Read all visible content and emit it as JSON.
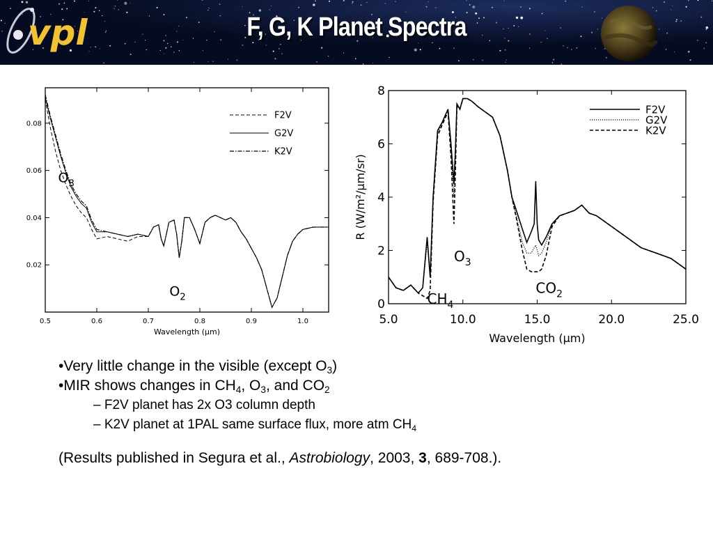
{
  "header": {
    "title": "F, G, K  Planet Spectra",
    "logo_text": "vpl",
    "logo_icon": "atom-orbit-icon",
    "decoration": "planet-icon",
    "colors": {
      "banner_bg": "#07102a",
      "logo": "#f2c230",
      "title": "#ffffff"
    }
  },
  "chart_data": [
    {
      "type": "line",
      "xlabel": "Wavelength (μm)",
      "xlim": [
        0.5,
        1.05
      ],
      "ylim": [
        0.0,
        0.095
      ],
      "xticks": [
        "0.5",
        "0.6",
        "0.7",
        "0.8",
        "0.9",
        "1.0"
      ],
      "yticks": [
        "0.02",
        "0.04",
        "0.06",
        "0.08"
      ],
      "legend": [
        "F2V",
        "G2V",
        "K2V"
      ],
      "legend_placement": "top-right",
      "annotations": [
        {
          "label": "O",
          "sub": "3",
          "x": 0.525,
          "y": 0.055
        },
        {
          "label": "O",
          "sub": "2",
          "x": 0.741,
          "y": 0.007
        }
      ],
      "series": [
        {
          "name": "F2V",
          "style": "dashed",
          "x": [
            0.5,
            0.51,
            0.52,
            0.53,
            0.54,
            0.55,
            0.56,
            0.57,
            0.58,
            0.59,
            0.6,
            0.62,
            0.64,
            0.66,
            0.68,
            0.7,
            0.71,
            0.72,
            0.725,
            0.73,
            0.74,
            0.75,
            0.755,
            0.76,
            0.765,
            0.77,
            0.78,
            0.79,
            0.8,
            0.81,
            0.82,
            0.83,
            0.84,
            0.85,
            0.86,
            0.87,
            0.88,
            0.89,
            0.9,
            0.91,
            0.92,
            0.93,
            0.94,
            0.95,
            0.96,
            0.97,
            0.98,
            0.99,
            1.0,
            1.02,
            1.05
          ],
          "y": [
            0.09,
            0.078,
            0.068,
            0.06,
            0.054,
            0.049,
            0.045,
            0.042,
            0.04,
            0.035,
            0.031,
            0.032,
            0.031,
            0.03,
            0.032,
            0.032,
            0.036,
            0.037,
            0.031,
            0.028,
            0.038,
            0.039,
            0.033,
            0.023,
            0.03,
            0.04,
            0.04,
            0.035,
            0.029,
            0.038,
            0.04,
            0.041,
            0.04,
            0.039,
            0.04,
            0.038,
            0.034,
            0.031,
            0.027,
            0.023,
            0.018,
            0.01,
            0.002,
            0.006,
            0.015,
            0.024,
            0.03,
            0.033,
            0.035,
            0.036,
            0.036
          ]
        },
        {
          "name": "G2V",
          "style": "solid",
          "x": [
            0.5,
            0.51,
            0.52,
            0.53,
            0.54,
            0.55,
            0.56,
            0.57,
            0.58,
            0.59,
            0.6,
            0.62,
            0.64,
            0.66,
            0.68,
            0.7,
            0.71,
            0.72,
            0.725,
            0.73,
            0.74,
            0.75,
            0.755,
            0.76,
            0.765,
            0.77,
            0.78,
            0.79,
            0.8,
            0.81,
            0.82,
            0.83,
            0.84,
            0.85,
            0.86,
            0.87,
            0.88,
            0.89,
            0.9,
            0.91,
            0.92,
            0.93,
            0.94,
            0.95,
            0.96,
            0.97,
            0.98,
            0.99,
            1.0,
            1.02,
            1.05
          ],
          "y": [
            0.091,
            0.082,
            0.074,
            0.066,
            0.059,
            0.053,
            0.049,
            0.046,
            0.044,
            0.038,
            0.034,
            0.034,
            0.033,
            0.032,
            0.033,
            0.032,
            0.036,
            0.037,
            0.031,
            0.028,
            0.038,
            0.039,
            0.033,
            0.023,
            0.03,
            0.04,
            0.04,
            0.035,
            0.029,
            0.038,
            0.04,
            0.041,
            0.04,
            0.039,
            0.04,
            0.038,
            0.034,
            0.031,
            0.027,
            0.023,
            0.018,
            0.01,
            0.002,
            0.006,
            0.015,
            0.024,
            0.03,
            0.033,
            0.035,
            0.036,
            0.036
          ]
        },
        {
          "name": "K2V",
          "style": "dash-dot",
          "x": [
            0.5,
            0.51,
            0.52,
            0.53,
            0.54,
            0.55,
            0.56,
            0.57,
            0.58,
            0.59,
            0.6,
            0.62,
            0.64,
            0.66,
            0.68,
            0.7,
            0.71,
            0.72,
            0.725,
            0.73,
            0.74,
            0.75,
            0.755,
            0.76,
            0.765,
            0.77,
            0.78,
            0.79,
            0.8,
            0.81,
            0.82,
            0.83,
            0.84,
            0.85,
            0.86,
            0.87,
            0.88,
            0.89,
            0.9,
            0.91,
            0.92,
            0.93,
            0.94,
            0.95,
            0.96,
            0.97,
            0.98,
            0.99,
            1.0,
            1.02,
            1.05
          ],
          "y": [
            0.092,
            0.083,
            0.075,
            0.067,
            0.06,
            0.054,
            0.05,
            0.047,
            0.045,
            0.039,
            0.035,
            0.034,
            0.033,
            0.032,
            0.033,
            0.032,
            0.036,
            0.037,
            0.031,
            0.028,
            0.038,
            0.039,
            0.033,
            0.023,
            0.03,
            0.04,
            0.04,
            0.035,
            0.029,
            0.038,
            0.04,
            0.041,
            0.04,
            0.039,
            0.04,
            0.038,
            0.034,
            0.031,
            0.027,
            0.023,
            0.018,
            0.01,
            0.002,
            0.006,
            0.015,
            0.024,
            0.03,
            0.033,
            0.035,
            0.036,
            0.036
          ]
        }
      ]
    },
    {
      "type": "line",
      "xlabel": "Wavelength (μm)",
      "ylabel": "R (W/m²/μm/sr)",
      "xlim": [
        5.0,
        25.0
      ],
      "ylim": [
        0,
        8
      ],
      "xticks": [
        "5.0",
        "10.0",
        "15.0",
        "20.0",
        "25.0"
      ],
      "yticks": [
        "0",
        "2",
        "4",
        "6",
        "8"
      ],
      "legend": [
        "F2V",
        "G2V",
        "K2V"
      ],
      "legend_placement": "top-right",
      "annotations": [
        {
          "label": "O",
          "sub": "3",
          "x": 9.4,
          "y": 1.6
        },
        {
          "label": "CO",
          "sub": "2",
          "x": 14.9,
          "y": 0.4
        },
        {
          "label": "CH",
          "sub": "4",
          "x": 7.6,
          "y": 0
        }
      ],
      "series": [
        {
          "name": "F2V",
          "style": "solid",
          "x": [
            5.0,
            5.5,
            6.0,
            6.5,
            7.0,
            7.3,
            7.6,
            7.8,
            8.0,
            8.3,
            8.6,
            9.0,
            9.2,
            9.4,
            9.5,
            9.6,
            9.8,
            10.0,
            10.3,
            10.6,
            11.0,
            11.5,
            12.0,
            12.5,
            13.0,
            13.3,
            13.6,
            14.0,
            14.3,
            14.6,
            14.8,
            14.9,
            15.0,
            15.1,
            15.3,
            15.6,
            16.0,
            16.5,
            17.0,
            17.5,
            18.0,
            18.5,
            19.0,
            20.0,
            21.0,
            22.0,
            23.0,
            24.0,
            25.0
          ],
          "y": [
            1.0,
            0.6,
            0.5,
            0.7,
            0.4,
            0.6,
            2.5,
            1.0,
            4.0,
            6.5,
            6.8,
            7.3,
            6.0,
            4.5,
            5.8,
            7.5,
            7.3,
            7.7,
            7.7,
            7.6,
            7.4,
            7.2,
            7.0,
            6.3,
            5.0,
            4.0,
            3.5,
            2.8,
            2.3,
            2.7,
            3.0,
            4.6,
            3.0,
            2.4,
            2.2,
            2.5,
            3.0,
            3.3,
            3.4,
            3.5,
            3.7,
            3.4,
            3.3,
            2.9,
            2.5,
            2.1,
            1.9,
            1.7,
            1.3
          ]
        },
        {
          "name": "G2V",
          "style": "dotted",
          "x": [
            5.0,
            5.5,
            6.0,
            6.5,
            7.0,
            7.3,
            7.6,
            7.8,
            8.0,
            8.3,
            8.6,
            9.0,
            9.2,
            9.4,
            9.5,
            9.6,
            9.8,
            10.0,
            10.3,
            10.6,
            11.0,
            11.5,
            12.0,
            12.5,
            13.0,
            13.3,
            13.6,
            14.0,
            14.3,
            14.6,
            14.8,
            14.9,
            15.0,
            15.1,
            15.3,
            15.6,
            16.0,
            16.5,
            17.0,
            17.5,
            18.0,
            18.5,
            19.0,
            20.0,
            21.0,
            22.0,
            23.0,
            24.0,
            25.0
          ],
          "y": [
            1.0,
            0.6,
            0.5,
            0.7,
            0.4,
            0.6,
            2.3,
            1.0,
            3.9,
            6.4,
            6.8,
            7.3,
            5.8,
            4.0,
            5.6,
            7.5,
            7.3,
            7.7,
            7.7,
            7.6,
            7.4,
            7.2,
            7.0,
            6.3,
            5.0,
            4.0,
            3.3,
            2.3,
            1.9,
            1.9,
            2.1,
            2.2,
            2.0,
            1.8,
            1.9,
            2.3,
            3.0,
            3.3,
            3.4,
            3.5,
            3.7,
            3.4,
            3.3,
            2.9,
            2.5,
            2.1,
            1.9,
            1.7,
            1.3
          ]
        },
        {
          "name": "K2V",
          "style": "dashed",
          "x": [
            5.0,
            5.5,
            6.0,
            6.5,
            7.0,
            7.3,
            7.6,
            7.8,
            8.0,
            8.3,
            8.6,
            9.0,
            9.2,
            9.4,
            9.5,
            9.6,
            9.8,
            10.0,
            10.3,
            10.6,
            11.0,
            11.5,
            12.0,
            12.5,
            13.0,
            13.3,
            13.6,
            14.0,
            14.3,
            14.6,
            14.8,
            14.9,
            15.0,
            15.1,
            15.3,
            15.6,
            16.0,
            16.5,
            17.0,
            17.5,
            18.0,
            18.5,
            19.0,
            20.0,
            21.0,
            22.0,
            23.0,
            24.0,
            25.0
          ],
          "y": [
            1.0,
            0.6,
            0.5,
            0.7,
            0.4,
            0.3,
            0.2,
            0.5,
            3.8,
            6.3,
            6.7,
            7.2,
            5.5,
            3.0,
            5.0,
            7.4,
            7.3,
            7.7,
            7.7,
            7.6,
            7.4,
            7.2,
            7.0,
            6.3,
            5.0,
            4.0,
            3.2,
            2.0,
            1.3,
            1.2,
            1.2,
            1.2,
            1.2,
            1.2,
            1.3,
            1.8,
            2.9,
            3.3,
            3.4,
            3.5,
            3.7,
            3.4,
            3.3,
            2.9,
            2.5,
            2.1,
            1.9,
            1.7,
            1.3
          ]
        }
      ]
    }
  ],
  "bullets": [
    {
      "parts": [
        {
          "t": "•Very little change in the visible (except O"
        },
        {
          "sub": "3"
        },
        {
          "t": ")"
        }
      ]
    },
    {
      "parts": [
        {
          "t": "•MIR shows changes in CH"
        },
        {
          "sub": "4"
        },
        {
          "t": ", O"
        },
        {
          "sub": "3"
        },
        {
          "t": ", and CO"
        },
        {
          "sub": "2"
        }
      ]
    },
    {
      "level": 2,
      "parts": [
        {
          "t": "–   F2V planet has 2x O3 column depth"
        }
      ]
    },
    {
      "level": 2,
      "parts": [
        {
          "t": "–   K2V planet at 1PAL same surface flux, more atm CH"
        },
        {
          "sub": "4"
        }
      ]
    }
  ],
  "citation": {
    "parts": [
      {
        "t": "(Results published in Segura et al., "
      },
      {
        "i": "Astrobiology"
      },
      {
        "t": ", 2003, "
      },
      {
        "b": "3"
      },
      {
        "t": ", 689-708.)."
      }
    ]
  }
}
